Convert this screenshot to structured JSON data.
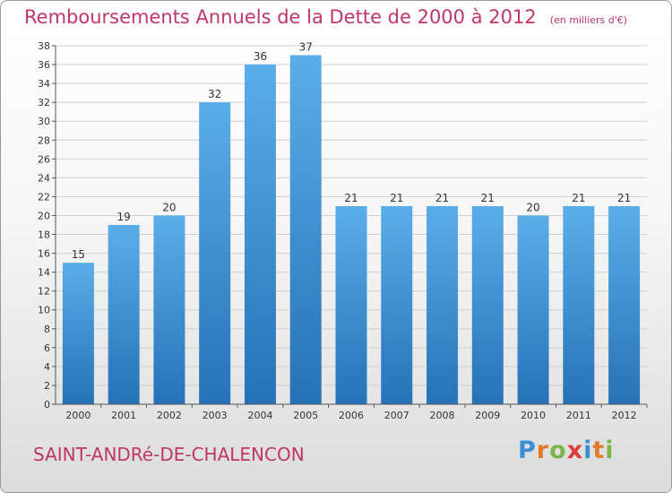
{
  "header": {
    "title": "Remboursements Annuels de la Dette de 2000 à 2012",
    "subtitle": "(en milliers d'€)"
  },
  "footer": {
    "commune": "SAINT-ANDRé-DE-CHALENCON",
    "brand": "Proxiti"
  },
  "colors": {
    "bar_top": "#5aaee8",
    "bar_bottom": "#2672b8",
    "title": "#c0356a",
    "grid": "#d0d0d0",
    "axis": "#555555"
  },
  "chart_data": {
    "type": "bar",
    "title": "Remboursements Annuels de la Dette de 2000 à 2012",
    "subtitle": "(en milliers d'€)",
    "categories": [
      "2000",
      "2001",
      "2002",
      "2003",
      "2004",
      "2005",
      "2006",
      "2007",
      "2008",
      "2009",
      "2010",
      "2011",
      "2012"
    ],
    "values": [
      15,
      19,
      20,
      32,
      36,
      37,
      21,
      21,
      21,
      21,
      20,
      21,
      21
    ],
    "ylim": [
      0,
      38
    ],
    "ytick_step": 2,
    "grid": true,
    "data_labels": true
  }
}
